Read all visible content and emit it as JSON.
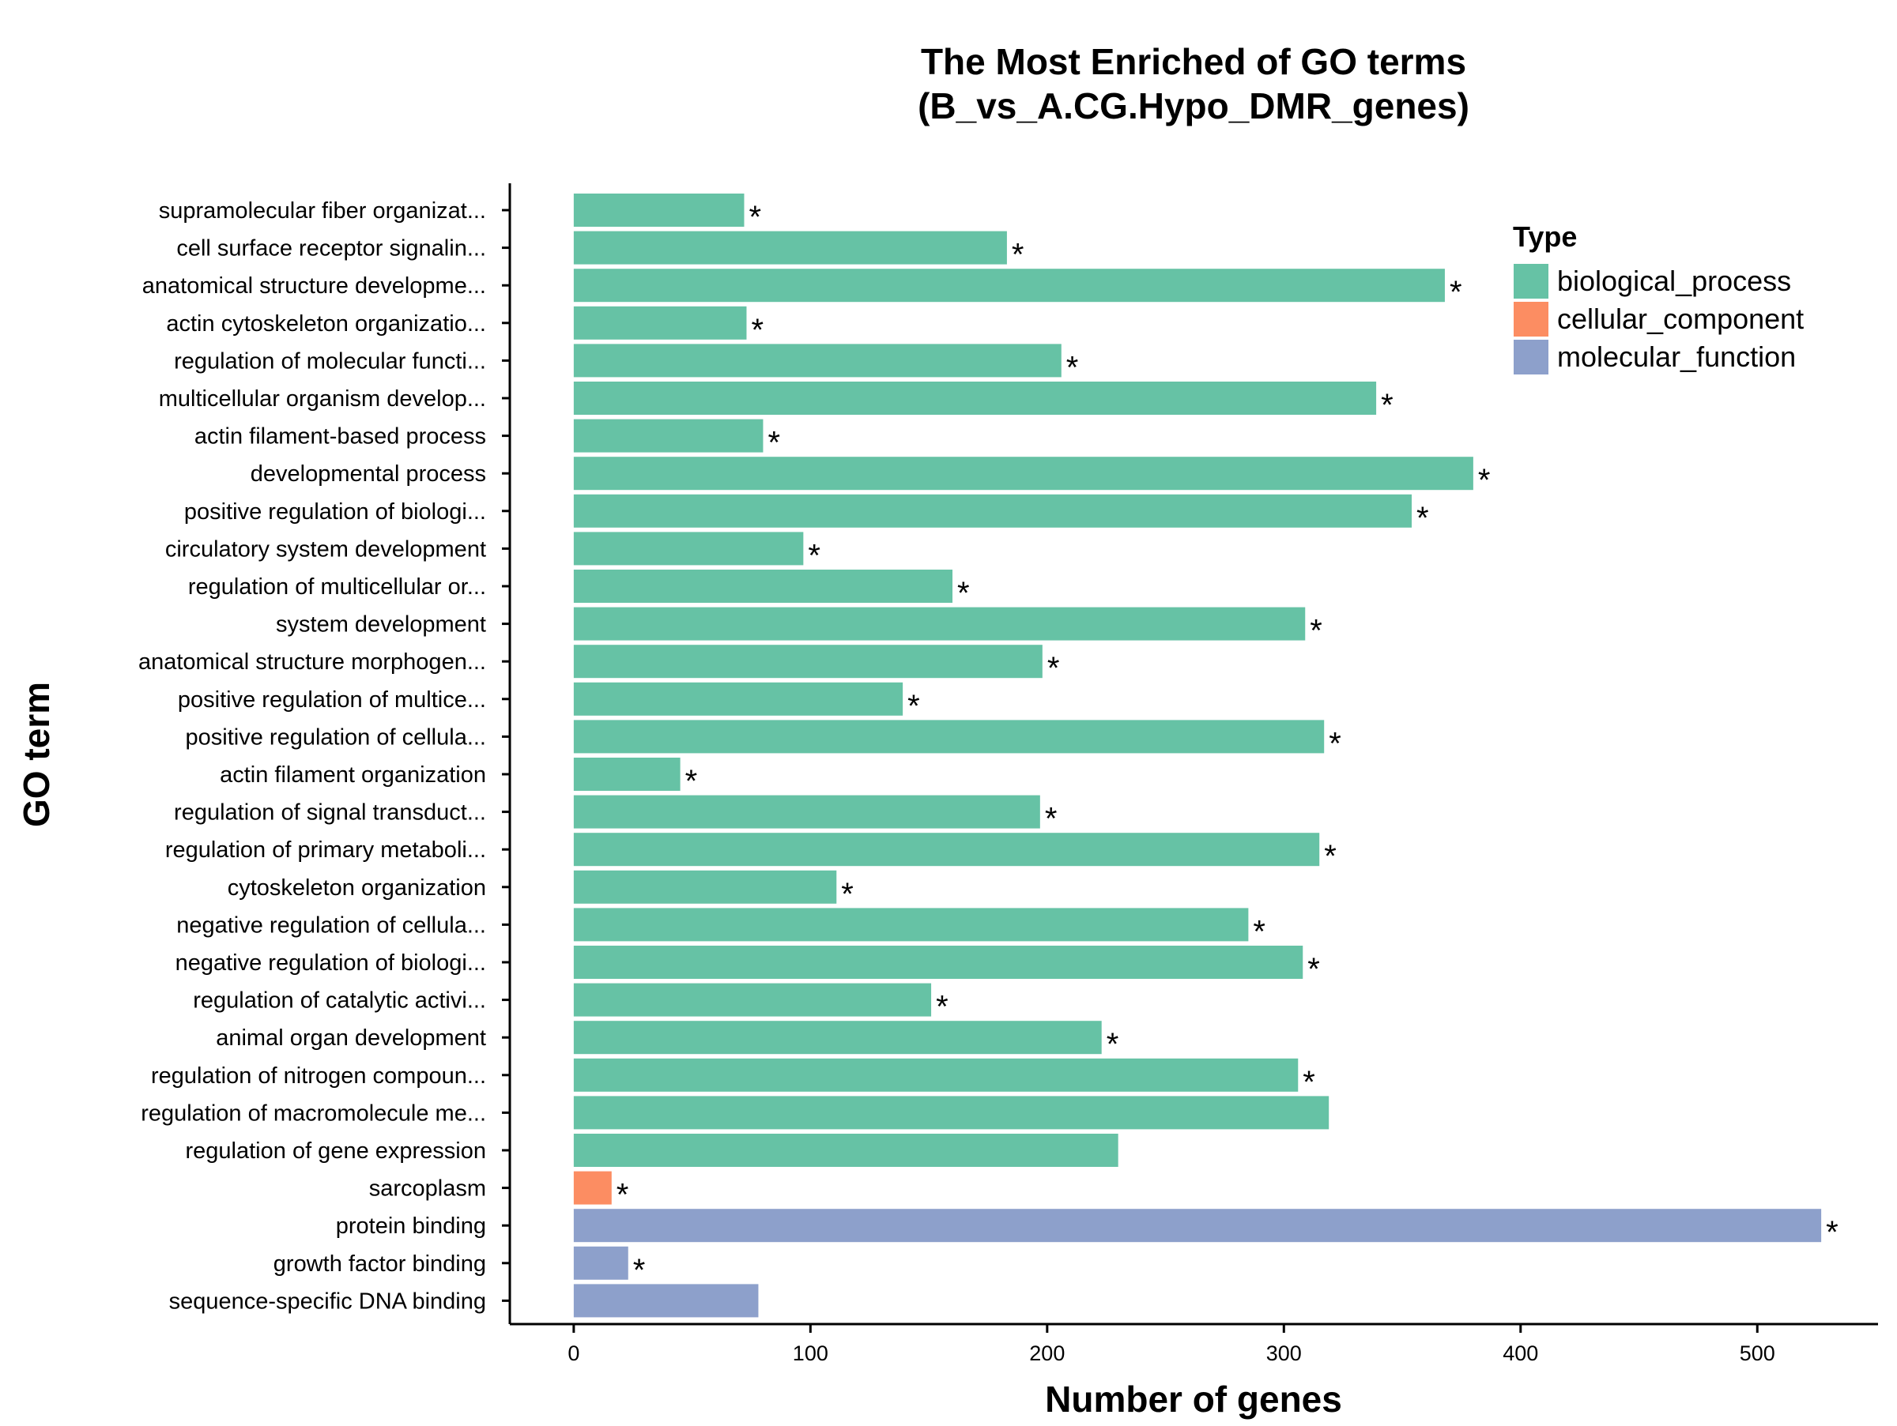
{
  "chart_data": {
    "type": "bar",
    "orientation": "horizontal",
    "title_lines": [
      "The Most Enriched of GO terms",
      "(B_vs_A.CG.Hypo_DMR_genes)"
    ],
    "xlabel": "Number of genes",
    "ylabel": "GO term",
    "xlim": [
      -27,
      551
    ],
    "x_ticks": [
      0,
      100,
      200,
      300,
      400,
      500
    ],
    "grid": false,
    "legend": {
      "title": "Type",
      "position": "top-right",
      "entries": [
        {
          "name": "biological_process",
          "color": "#66c2a5"
        },
        {
          "name": "cellular_component",
          "color": "#fc8d62"
        },
        {
          "name": "molecular_function",
          "color": "#8da0cb"
        }
      ]
    },
    "categories": [
      "supramolecular fiber organizat...",
      "cell surface receptor signalin...",
      "anatomical structure developme...",
      "actin cytoskeleton organizatio...",
      "regulation of molecular functi...",
      "multicellular organism develop...",
      "actin filament-based process",
      "developmental process",
      "positive regulation of biologi...",
      "circulatory system development",
      "regulation of multicellular or...",
      "system development",
      "anatomical structure morphogen...",
      "positive regulation of multice...",
      "positive regulation of cellula...",
      "actin filament organization",
      "regulation of signal transduct...",
      "regulation of primary metaboli...",
      "cytoskeleton organization",
      "negative regulation of cellula...",
      "negative regulation of biologi...",
      "regulation of catalytic activi...",
      "animal organ development",
      "regulation of nitrogen compoun...",
      "regulation of macromolecule me...",
      "regulation of gene expression",
      "sarcoplasm",
      "protein binding",
      "growth factor binding",
      "sequence-specific DNA binding"
    ],
    "values": [
      72,
      183,
      368,
      73,
      206,
      339,
      80,
      380,
      354,
      97,
      160,
      309,
      198,
      139,
      317,
      45,
      197,
      315,
      111,
      285,
      308,
      151,
      223,
      306,
      319,
      230,
      16,
      527,
      23,
      78
    ],
    "types": [
      "biological_process",
      "biological_process",
      "biological_process",
      "biological_process",
      "biological_process",
      "biological_process",
      "biological_process",
      "biological_process",
      "biological_process",
      "biological_process",
      "biological_process",
      "biological_process",
      "biological_process",
      "biological_process",
      "biological_process",
      "biological_process",
      "biological_process",
      "biological_process",
      "biological_process",
      "biological_process",
      "biological_process",
      "biological_process",
      "biological_process",
      "biological_process",
      "biological_process",
      "biological_process",
      "cellular_component",
      "molecular_function",
      "molecular_function",
      "molecular_function"
    ],
    "significant": [
      true,
      true,
      true,
      true,
      true,
      true,
      true,
      true,
      true,
      true,
      true,
      true,
      true,
      true,
      true,
      true,
      true,
      true,
      true,
      true,
      true,
      true,
      true,
      true,
      false,
      false,
      true,
      true,
      true,
      false
    ],
    "significance_marker": "*"
  }
}
